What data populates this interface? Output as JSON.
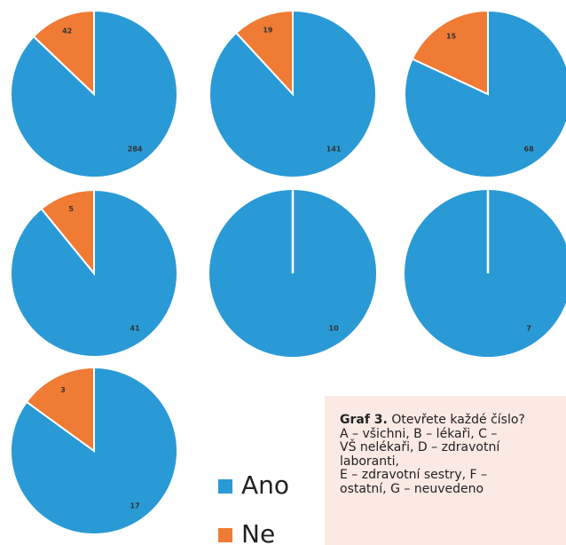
{
  "chart_data": [
    {
      "type": "pie",
      "categories": [
        "Ano",
        "Ne"
      ],
      "values": [
        284,
        42
      ],
      "colors": [
        "#2a9ad6",
        "#f07b35"
      ]
    },
    {
      "type": "pie",
      "categories": [
        "Ano",
        "Ne"
      ],
      "values": [
        141,
        19
      ],
      "colors": [
        "#2a9ad6",
        "#f07b35"
      ]
    },
    {
      "type": "pie",
      "categories": [
        "Ano",
        "Ne"
      ],
      "values": [
        68,
        15
      ],
      "colors": [
        "#2a9ad6",
        "#f07b35"
      ]
    },
    {
      "type": "pie",
      "categories": [
        "Ano",
        "Ne"
      ],
      "values": [
        41,
        5
      ],
      "colors": [
        "#2a9ad6",
        "#f07b35"
      ]
    },
    {
      "type": "pie",
      "categories": [
        "Ano",
        "Ne"
      ],
      "values": [
        10,
        0
      ],
      "colors": [
        "#2a9ad6",
        "#f07b35"
      ]
    },
    {
      "type": "pie",
      "categories": [
        "Ano",
        "Ne"
      ],
      "values": [
        7,
        0
      ],
      "colors": [
        "#2a9ad6",
        "#f07b35"
      ]
    },
    {
      "type": "pie",
      "categories": [
        "Ano",
        "Ne"
      ],
      "values": [
        17,
        3
      ],
      "colors": [
        "#2a9ad6",
        "#f07b35"
      ]
    }
  ],
  "caption": {
    "label": "Graf 3.",
    "lines": [
      "Otevřete každé číslo?",
      "A – všichni, B – lékaři, C –",
      "VŠ nelékaři, D – zdravotní",
      "laboranti,",
      "E – zdravotní sestry, F –",
      "ostatní, G – neuvedeno"
    ]
  }
}
